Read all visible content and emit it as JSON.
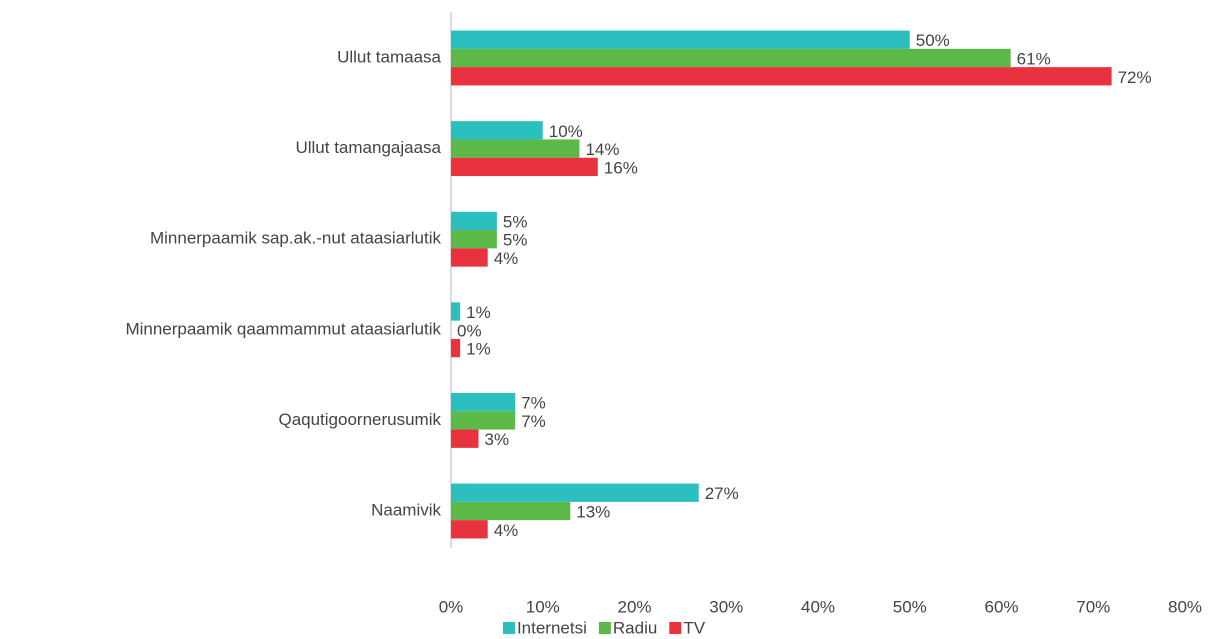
{
  "chart_data": {
    "type": "barh",
    "categories": [
      "Ullut tamaasa",
      "Ullut tamangajaasa",
      "Minnerpaamik sap.ak.-nut ataasiarlutik",
      "Minnerpaamik qaammammut ataasiarlutik",
      "Qaqutigoornerusumik",
      "Naamivik"
    ],
    "series": [
      {
        "name": "Internetsi",
        "color": "#2bbfbf",
        "values": [
          50,
          10,
          5,
          1,
          7,
          27
        ],
        "value_labels": [
          "50%",
          "10%",
          "5%",
          "1%",
          "7%",
          "27%"
        ]
      },
      {
        "name": "Radiu",
        "color": "#5cb947",
        "values": [
          61,
          14,
          5,
          0,
          7,
          13
        ],
        "value_labels": [
          "61%",
          "14%",
          "5%",
          "0%",
          "7%",
          "13%"
        ]
      },
      {
        "name": "TV",
        "color": "#e8323f",
        "values": [
          72,
          16,
          4,
          1,
          3,
          4
        ],
        "value_labels": [
          "72%",
          "16%",
          "4%",
          "1%",
          "3%",
          "4%"
        ]
      }
    ],
    "xlim": [
      0,
      80
    ],
    "xticks": [
      {
        "value": 0,
        "label": "0%"
      },
      {
        "value": 10,
        "label": "10%"
      },
      {
        "value": 20,
        "label": "20%"
      },
      {
        "value": 30,
        "label": "30%"
      },
      {
        "value": 40,
        "label": "40%"
      },
      {
        "value": 50,
        "label": "50%"
      },
      {
        "value": 60,
        "label": "60%"
      },
      {
        "value": 70,
        "label": "70%"
      },
      {
        "value": 80,
        "label": "80%"
      }
    ],
    "grid": false,
    "legend": "bottom"
  }
}
